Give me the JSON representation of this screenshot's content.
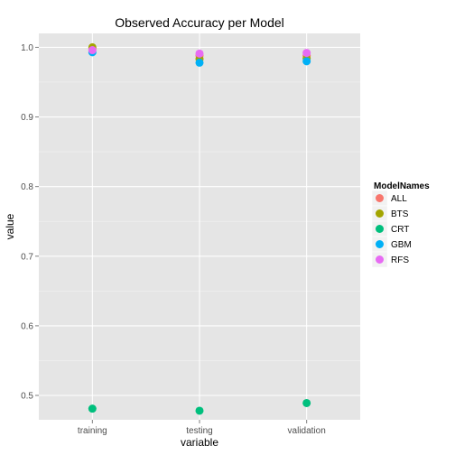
{
  "chart_data": {
    "type": "scatter",
    "title": "Observed Accuracy per Model",
    "xlabel": "variable",
    "ylabel": "value",
    "categories": [
      "training",
      "testing",
      "validation"
    ],
    "ylim": [
      0.465,
      1.02
    ],
    "yticks": [
      0.5,
      0.6,
      0.7,
      0.8,
      0.9,
      1.0
    ],
    "ytick_labels": [
      "0.5",
      "0.6",
      "0.7",
      "0.8",
      "0.9",
      "1.0"
    ],
    "grid": true,
    "legend": {
      "title": "ModelNames",
      "position": "right"
    },
    "series": [
      {
        "name": "ALL",
        "color": "#F8766D",
        "values": [
          0.998,
          0.988,
          0.988
        ]
      },
      {
        "name": "BTS",
        "color": "#A3A500",
        "values": [
          1.0,
          0.983,
          0.984
        ]
      },
      {
        "name": "CRT",
        "color": "#00BF7D",
        "values": [
          0.481,
          0.478,
          0.489
        ]
      },
      {
        "name": "GBM",
        "color": "#00B0F6",
        "values": [
          0.993,
          0.978,
          0.98
        ]
      },
      {
        "name": "RFS",
        "color": "#E76BF3",
        "values": [
          0.996,
          0.991,
          0.992
        ]
      }
    ]
  }
}
